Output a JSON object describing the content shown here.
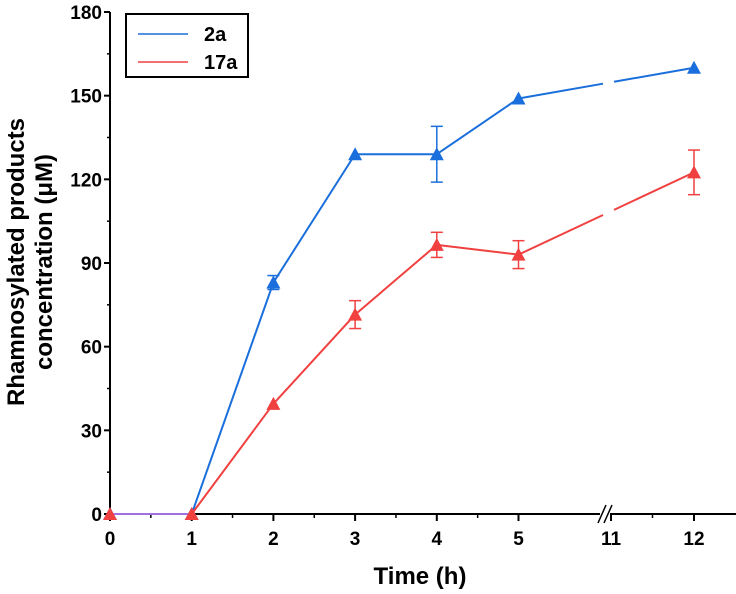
{
  "chart_data": {
    "type": "line",
    "xlabel": "Time (h)",
    "ylabel_lines": [
      "Rhamnosylated products",
      "concentration (μM)"
    ],
    "x": [
      0,
      1,
      2,
      3,
      4,
      5,
      12
    ],
    "x_ticks": [
      "0",
      "1",
      "2",
      "3",
      "4",
      "5",
      "11",
      "12"
    ],
    "x_axis_break": "between 5 and 11",
    "ylim": [
      0,
      180
    ],
    "y_ticks": [
      "0",
      "30",
      "60",
      "90",
      "120",
      "150",
      "180"
    ],
    "grid": false,
    "legend_position": "top-left",
    "series": [
      {
        "name": "2a",
        "color": "#1a6fdc",
        "marker": "triangle",
        "values": [
          0,
          0,
          83,
          129,
          129,
          149,
          160
        ],
        "errors": [
          0,
          0,
          2.5,
          0,
          10,
          0,
          0
        ]
      },
      {
        "name": "17a",
        "color": "#f04040",
        "marker": "triangle",
        "values": [
          0,
          0,
          39.5,
          71.5,
          96.5,
          93,
          122.5
        ],
        "errors": [
          0,
          0,
          0,
          5,
          4.5,
          5,
          8
        ]
      }
    ]
  }
}
